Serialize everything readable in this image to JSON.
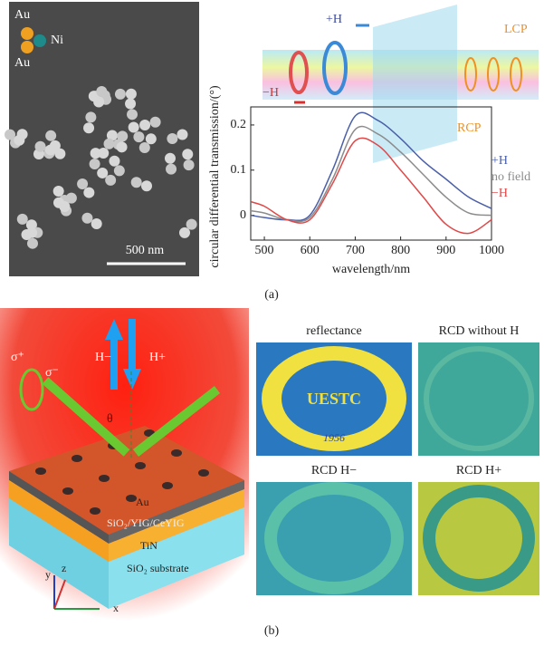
{
  "panel_a": {
    "sem_labels": [
      "Au",
      "Ni",
      "Au",
      "500 nm"
    ],
    "schematic_labels": {
      "plus_h": "+H",
      "minus_h": "−H",
      "lcp": "LCP",
      "rcp": "RCP"
    },
    "caption": "(a)"
  },
  "chart_data": {
    "type": "line",
    "ylabel": "circular differential transmission/(°)",
    "xlabel": "wavelength/nm",
    "x": [
      470,
      500,
      550,
      600,
      650,
      700,
      750,
      800,
      850,
      900,
      950,
      1000
    ],
    "series": [
      {
        "name": "+H",
        "color": "#4a5fa8",
        "values": [
          0.0,
          -0.005,
          -0.01,
          0.0,
          0.1,
          0.22,
          0.21,
          0.17,
          0.12,
          0.08,
          0.04,
          0.015
        ]
      },
      {
        "name": "no field",
        "color": "#8c8c8c",
        "values": [
          0.01,
          0.005,
          -0.01,
          -0.005,
          0.08,
          0.19,
          0.18,
          0.14,
          0.09,
          0.04,
          0.005,
          0.0
        ]
      },
      {
        "name": "−H",
        "color": "#e04848",
        "values": [
          0.03,
          0.02,
          -0.01,
          -0.01,
          0.07,
          0.165,
          0.155,
          0.1,
          0.04,
          -0.02,
          -0.04,
          -0.01
        ]
      }
    ],
    "xlim": [
      470,
      1000
    ],
    "xticks": [
      500,
      600,
      700,
      800,
      900,
      1000
    ],
    "ylim": [
      -0.055,
      0.24
    ],
    "yticks": [
      0,
      0.1,
      0.2
    ],
    "grid": false,
    "legend": "right"
  },
  "panel_b": {
    "schematic_labels": {
      "h_minus": "H−",
      "h_plus": "H+",
      "sigma_plus": "σ⁺",
      "sigma_minus": "σ⁻",
      "theta": "θ",
      "au": "Au",
      "layer": "SiO₂/YIG/CeYIG",
      "tin": "TiN",
      "substrate": "SiO₂ substrate",
      "x": "x",
      "y": "y",
      "z": "z"
    },
    "images": [
      {
        "title": "reflectance",
        "texts": [
          "UESTC",
          "1956"
        ]
      },
      {
        "title": "RCD without H"
      },
      {
        "title": "RCD H−"
      },
      {
        "title": "RCD H+"
      }
    ],
    "caption": "(b)"
  }
}
